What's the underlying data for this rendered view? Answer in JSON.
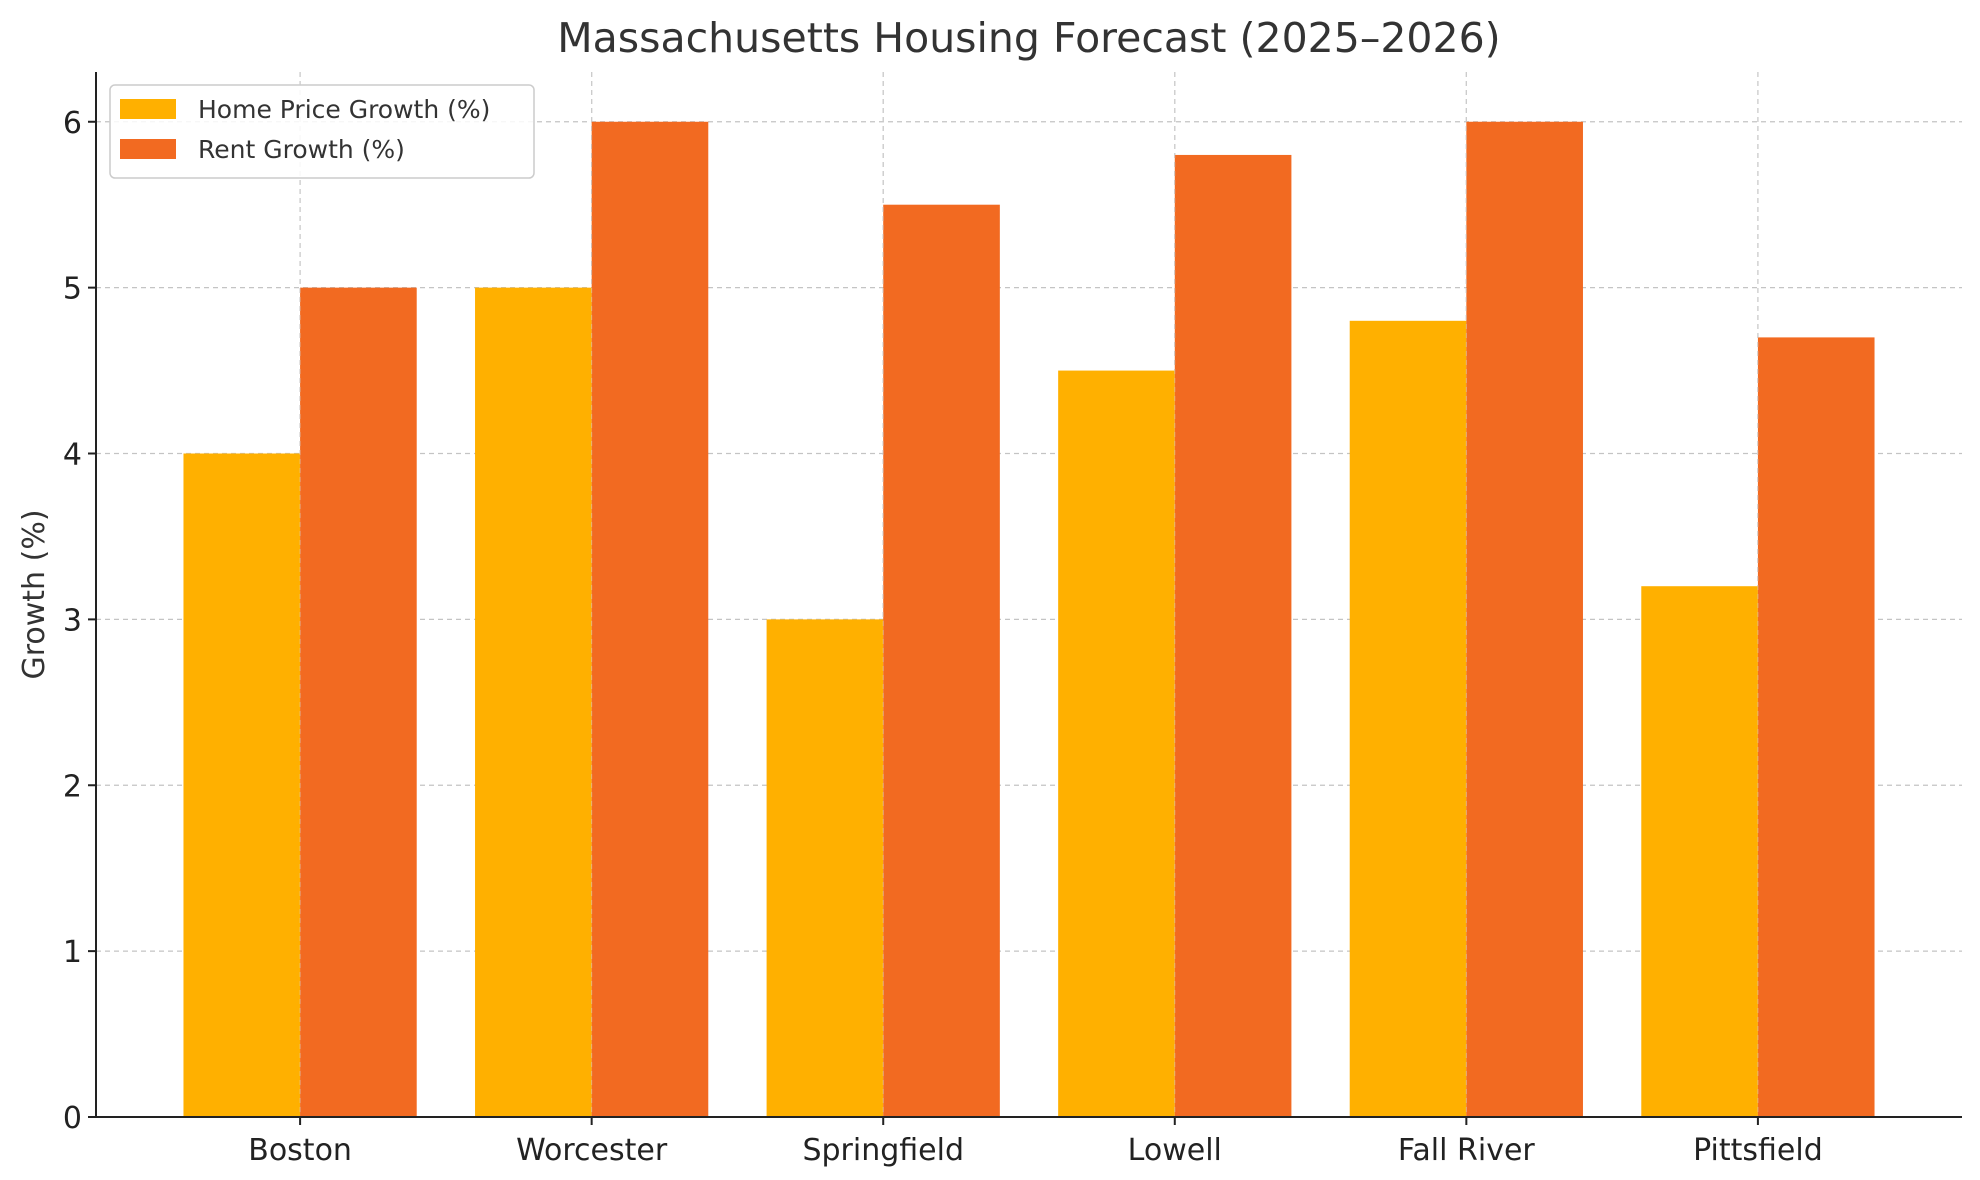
{
  "chart_data": {
    "type": "bar",
    "title": "Massachusetts Housing Forecast (2025–2026)",
    "xlabel": "",
    "ylabel": "Growth (%)",
    "categories": [
      "Boston",
      "Worcester",
      "Springfield",
      "Lowell",
      "Fall River",
      "Pittsfield"
    ],
    "series": [
      {
        "name": "Home Price Growth (%)",
        "color": "#FFB000",
        "values": [
          4.0,
          5.0,
          3.0,
          4.5,
          4.8,
          3.2
        ]
      },
      {
        "name": "Rent Growth (%)",
        "color": "#F26A21",
        "values": [
          5.0,
          6.0,
          5.5,
          5.8,
          6.0,
          4.7
        ]
      }
    ],
    "ylim": [
      0,
      6.3
    ],
    "yticks": [
      "0",
      "1",
      "2",
      "3",
      "4",
      "5",
      "6"
    ],
    "grid": true,
    "legend_position": "top-left"
  }
}
